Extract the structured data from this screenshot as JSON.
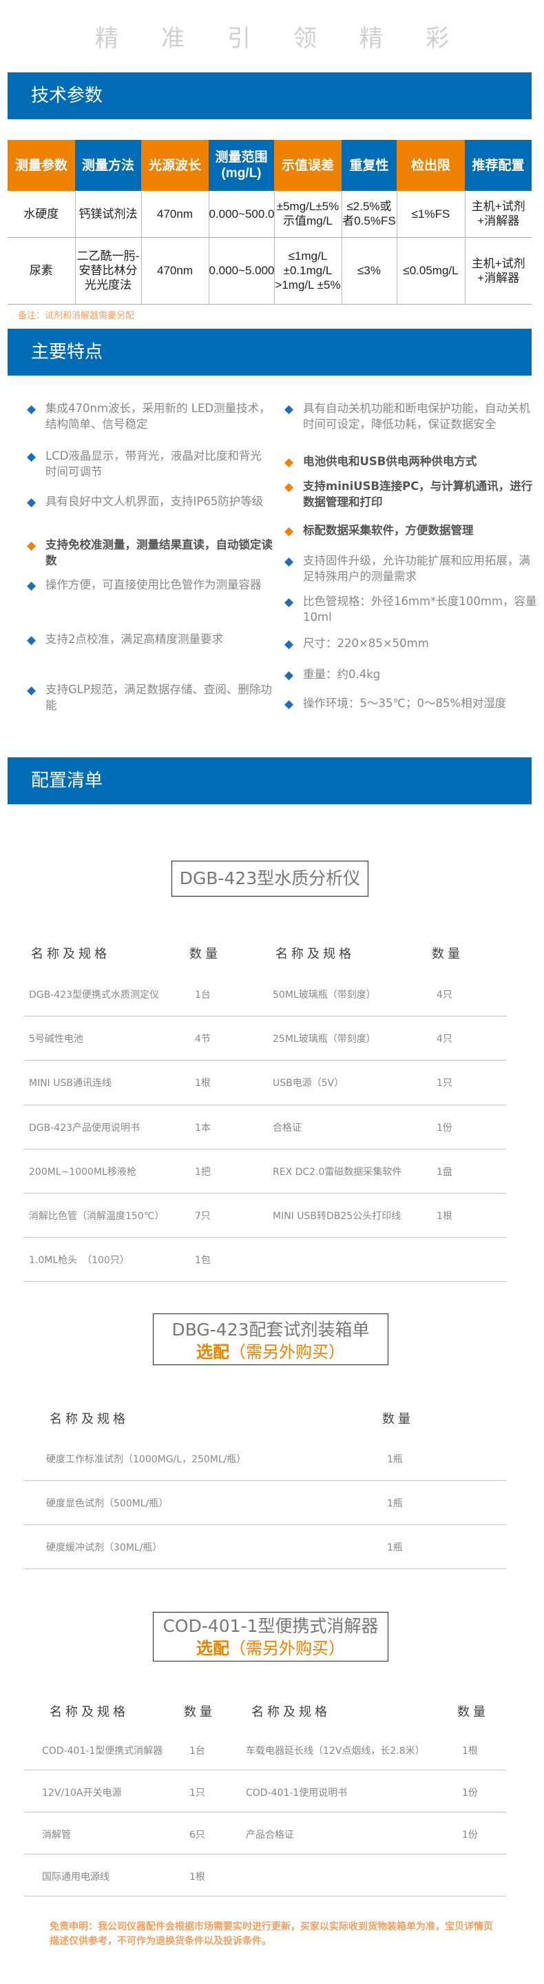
{
  "slogan": "精准引领精彩",
  "sections": {
    "spec": "技术参数",
    "features": "主要特点",
    "config": "配置清单"
  },
  "spec_table": {
    "headers": [
      {
        "label": "测量参数",
        "color": "#ee8200"
      },
      {
        "label": "测量方法",
        "color": "#006cb6"
      },
      {
        "label": "光源波长",
        "color": "#ee8200"
      },
      {
        "label": "测量范围(mg/L)",
        "color": "#006cb6"
      },
      {
        "label": "示值误差",
        "color": "#ee8200"
      },
      {
        "label": "重复性",
        "color": "#006cb6"
      },
      {
        "label": "检出限",
        "color": "#ee8200"
      },
      {
        "label": "推荐配置",
        "color": "#006cb6"
      }
    ],
    "rows": [
      [
        "水硬度",
        "钙镁试剂法",
        "470nm",
        "0.000~500.0",
        "±5mg/L±5%示值mg/L",
        "≤2.5%或者0.5%FS",
        "≤1%FS",
        "主机+试剂+消解器"
      ],
      [
        "尿素",
        "二乙酰一肟-安替比林分光光度法",
        "470nm",
        "0.000~5.000",
        "≤1mg/L ±0.1mg/L >1mg/L ±5%",
        "≤3%",
        "≤0.05mg/L",
        "主机+试剂+消解器"
      ]
    ],
    "note": "备注：试剂和消解器需要另配"
  },
  "features": {
    "left": [
      {
        "text": "集成470nm波长，采用新的 LED测量技术，结构简单、信号稳定",
        "highlight": false
      },
      {
        "text": "LCD液晶显示，带背光，液晶对比度和背光时间可调节",
        "highlight": false
      },
      {
        "text": "具有良好中文人机界面，支持IP65防护等级",
        "highlight": false
      },
      {
        "text": "支持免校准测量，测量结果直读，自动锁定读数",
        "highlight": true
      },
      {
        "text": "操作方便，可直接使用比色管作为测量容器",
        "highlight": false
      },
      {
        "text": "支持2点校准，满足高精度测量要求",
        "highlight": false
      },
      {
        "text": "支持GLP规范，满足数据存储、查阅、删除功能",
        "highlight": false
      }
    ],
    "right": [
      {
        "text": "具有自动关机功能和断电保护功能，自动关机时间可设定，降低功耗，保证数据安全",
        "highlight": false
      },
      {
        "text": "电池供电和USB供电两种供电方式",
        "highlight": true
      },
      {
        "text": "支持miniUSB连接PC，与计算机通讯，进行数据管理和打印",
        "highlight": true
      },
      {
        "text": "标配数据采集软件，方便数据管理",
        "highlight": true
      },
      {
        "text": "支持固件升级，允许功能扩展和应用拓展，满足特殊用户的测量需求",
        "highlight": false
      },
      {
        "text": "比色管规格：外径16mm*长度100mm，容量10ml",
        "highlight": false
      },
      {
        "text": "尺寸：220×85×50mm",
        "highlight": false
      },
      {
        "text": "重量：约0.4kg",
        "highlight": false
      },
      {
        "text": "操作环境：5～35℃；0～85%相对湿度",
        "highlight": false
      }
    ]
  },
  "box1": {
    "title": "DGB-423型水质分析仪"
  },
  "list1": {
    "headers": [
      "名称及规格",
      "数量",
      "名称及规格",
      "数量"
    ],
    "rows": [
      [
        "DGB-423型便携式水质测定仪",
        "1台",
        "50ML玻璃瓶（带刻度）",
        "4只"
      ],
      [
        "5号碱性电池",
        "4节",
        "25ML玻璃瓶（带刻度）",
        "4只"
      ],
      [
        "MINI USB通讯连线",
        "1根",
        "USB电源（5V）",
        "1只"
      ],
      [
        "DGB-423产品使用说明书",
        "1本",
        "合格证",
        "1份"
      ],
      [
        "200ML~1000ML移液枪",
        "1把",
        "REX DC2.0雷磁数据采集软件",
        "1盘"
      ],
      [
        "消解比色管（消解温度150℃）",
        "7只",
        "MINI USB转DB25公头打印线",
        "1根"
      ],
      [
        "1.0ML枪头　（100只）",
        "1包",
        "",
        ""
      ]
    ]
  },
  "box2": {
    "title": "DBG-423配套试剂装箱单",
    "sub_bold": "选配",
    "sub": "（需另外购买）"
  },
  "list2": {
    "headers": [
      "名称及规格",
      "数量"
    ],
    "rows": [
      [
        "硬度工作标准试剂（1000MG/L，250ML/瓶）",
        "1瓶"
      ],
      [
        "硬度显色试剂（500ML/瓶）",
        "1瓶"
      ],
      [
        "硬度缓冲试剂（30ML/瓶）",
        "1瓶"
      ]
    ]
  },
  "box3": {
    "title": "COD-401-1型便携式消解器",
    "sub_bold": "选配",
    "sub": "（需另外购买）"
  },
  "list3": {
    "headers": [
      "名称及规格",
      "数量",
      "名称及规格",
      "数量"
    ],
    "rows": [
      [
        "COD-401-1型便携式消解器",
        "1台",
        "车载电器延长线（12V点烟线，长2.8米）",
        "1根"
      ],
      [
        "12V/10A开关电源",
        "1只",
        "COD-401-1使用说明书",
        "1份"
      ],
      [
        "消解管",
        "6只",
        "产品合格证",
        "1份"
      ],
      [
        "国际通用电源线",
        "1根",
        "",
        ""
      ]
    ]
  },
  "disclaimer": "免责申明：我公司仪器配件会根据市场需要实时进行更新，买家以实际收到货物装箱单为准，宝贝详情页描述仅供参考，不可作为退换货条件以及投诉条件。"
}
